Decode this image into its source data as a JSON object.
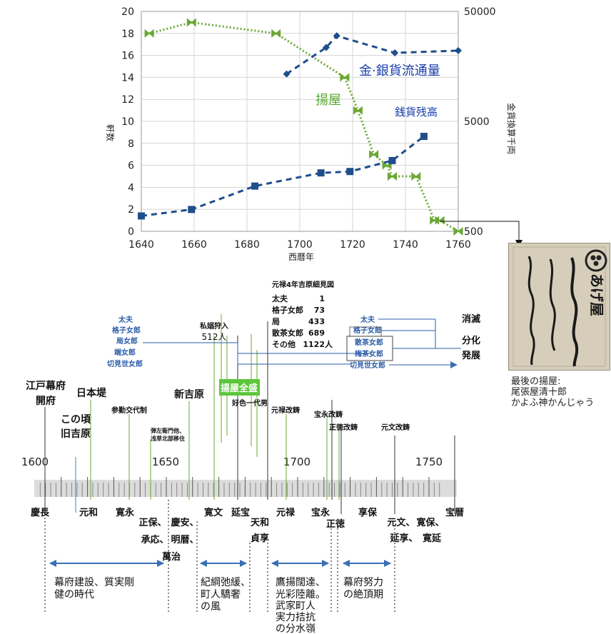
{
  "chart_data": {
    "type": "line",
    "xlabel": "西曆年",
    "ylabel": "軒数",
    "y2label": "金貨換算千両",
    "xlim": [
      1640,
      1760
    ],
    "ylim": [
      0,
      20
    ],
    "y2_scale": "log",
    "y2lim": [
      500,
      50000
    ],
    "x_ticks": [
      "1640",
      "1660",
      "1680",
      "1700",
      "1720",
      "1740",
      "1760"
    ],
    "y_ticks": [
      "0",
      "2",
      "4",
      "6",
      "8",
      "10",
      "12",
      "14",
      "16",
      "18",
      "20"
    ],
    "y2_ticks": [
      "500",
      "5000",
      "50000"
    ],
    "grid": true,
    "series": [
      {
        "name": "揚屋",
        "axis": "left",
        "color": "#6aa832",
        "x": [
          1643,
          1659,
          1691,
          1717,
          1722,
          1728,
          1733,
          1735,
          1744,
          1751,
          1753,
          1760
        ],
        "y": [
          18,
          19,
          18,
          14,
          11,
          7,
          6,
          5,
          5,
          1,
          1,
          0
        ]
      },
      {
        "name": "金·銀貨流通量",
        "axis": "right",
        "color": "#1f4e8c",
        "x": [
          1695,
          1710,
          1714,
          1736,
          1760
        ],
        "y": [
          13500,
          23500,
          30000,
          21000,
          22000
        ]
      },
      {
        "name": "銭貨残高",
        "axis": "right",
        "color": "#1f4e8c",
        "x": [
          1640,
          1659,
          1683,
          1708,
          1719,
          1735,
          1747
        ],
        "y": [
          690,
          790,
          1290,
          1700,
          1750,
          2200,
          3650
        ]
      }
    ]
  },
  "timeline": {
    "decades": [
      "1600",
      "1650",
      "1700",
      "1750"
    ],
    "eras": [
      {
        "label": "慶長",
        "year": 1596
      },
      {
        "label": "元和",
        "year": 1615
      },
      {
        "label": "寛永",
        "year": 1624
      },
      {
        "label": "正保、",
        "year": 1644
      },
      {
        "label": "承応、",
        "year": 1652
      },
      {
        "label": "慶安、",
        "year": 1648
      },
      {
        "label": "明暦、",
        "year": 1655
      },
      {
        "label": "萬治",
        "year": 1658
      },
      {
        "label": "寛文",
        "year": 1661
      },
      {
        "label": "延宝",
        "year": 1673
      },
      {
        "label": "天和",
        "year": 1681
      },
      {
        "label": "貞享",
        "year": 1684
      },
      {
        "label": "元禄",
        "year": 1688
      },
      {
        "label": "宝永",
        "year": 1704
      },
      {
        "label": "正徳",
        "year": 1711
      },
      {
        "label": "享保",
        "year": 1716
      },
      {
        "label": "元文、",
        "year": 1736
      },
      {
        "label": "寛保、",
        "year": 1741
      },
      {
        "label": "延享、",
        "year": 1744
      },
      {
        "label": "寛延",
        "year": 1748
      },
      {
        "label": "宝暦",
        "year": 1751
      }
    ],
    "events": [
      {
        "label": "江戸幕府",
        "label2": "開府"
      },
      {
        "label": "日本堤"
      },
      {
        "label": "この頃",
        "label2": "旧吉原"
      },
      {
        "label": "参勤交代制"
      },
      {
        "label": "弾左衛門他、",
        "label2": "浅草北部移住"
      },
      {
        "label": "新吉原"
      },
      {
        "label": "揚屋全盛"
      },
      {
        "label": "好色一代男"
      },
      {
        "label": "元禄改鋳"
      },
      {
        "label": "宝永改鋳"
      },
      {
        "label": "正徳改鋳"
      },
      {
        "label": "元文改鋳"
      }
    ],
    "ranks_left": [
      "太夫",
      "格子女郎",
      "局女郎",
      "端女郎",
      "切見世女郎"
    ],
    "private_prostitutes": {
      "title": "私娼狩入",
      "count": "512人"
    },
    "genroku_census": {
      "title": "元禄4年吉原細見図",
      "rows": [
        {
          "name": "太夫",
          "count": "1"
        },
        {
          "name": "格子女郎",
          "count": "73"
        },
        {
          "name": "局",
          "count": "433"
        },
        {
          "name": "散茶女郎",
          "count": "689"
        },
        {
          "name": "その他",
          "count": "1122人"
        }
      ]
    },
    "ranks_right": [
      "太夫",
      "格子女郎",
      "散茶女郎",
      "梅茶女郎",
      "切見世女郎"
    ],
    "outcomes": [
      "消滅",
      "分化",
      "発展"
    ],
    "periods": [
      {
        "lines": [
          "幕府建設、質実剛",
          "健の時代"
        ]
      },
      {
        "lines": [
          "紀綱弛緩、",
          "町人驕奢",
          "の風"
        ]
      },
      {
        "lines": [
          "鷹揚闊達、",
          "光彩陸離。",
          "武家町人",
          "実力拮抗",
          "の分水嶺"
        ]
      },
      {
        "lines": [
          "幕府努力",
          "の絶頂期"
        ]
      }
    ]
  },
  "photo": {
    "stamp": "あげ屋",
    "caption": [
      "最後の揚屋:",
      "尾張屋清十郎",
      "かよふ神かんじゃう"
    ]
  }
}
